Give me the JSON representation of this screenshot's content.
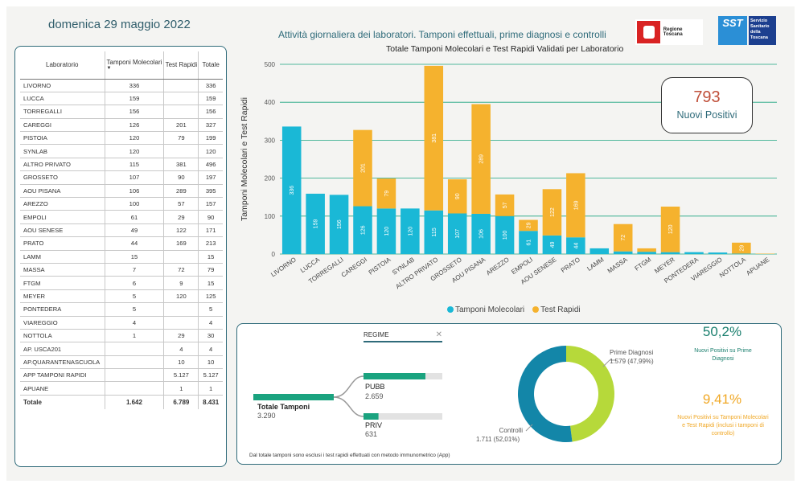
{
  "header": {
    "date": "domenica 29 maggio 2022",
    "subtitle": "Attività giornaliera dei laboratori. Tamponi effettuali, prime diagnosi e controlli",
    "logo_regione": "Regione Toscana",
    "logo_sst_mark": "SST",
    "logo_sst_text": "Servizio Sanitario della Toscana"
  },
  "table": {
    "headers": [
      "Laboratorio",
      "Tamponi Molecolari",
      "Test Rapidi",
      "Totale"
    ],
    "rows": [
      [
        "LIVORNO",
        "336",
        "",
        "336"
      ],
      [
        "LUCCA",
        "159",
        "",
        "159"
      ],
      [
        "TORREGALLI",
        "156",
        "",
        "156"
      ],
      [
        "CAREGGI",
        "126",
        "201",
        "327"
      ],
      [
        "PISTOIA",
        "120",
        "79",
        "199"
      ],
      [
        "SYNLAB",
        "120",
        "",
        "120"
      ],
      [
        "ALTRO PRIVATO",
        "115",
        "381",
        "496"
      ],
      [
        "GROSSETO",
        "107",
        "90",
        "197"
      ],
      [
        "AOU PISANA",
        "106",
        "289",
        "395"
      ],
      [
        "AREZZO",
        "100",
        "57",
        "157"
      ],
      [
        "EMPOLI",
        "61",
        "29",
        "90"
      ],
      [
        "AOU SENESE",
        "49",
        "122",
        "171"
      ],
      [
        "PRATO",
        "44",
        "169",
        "213"
      ],
      [
        "LAMM",
        "15",
        "",
        "15"
      ],
      [
        "MASSA",
        "7",
        "72",
        "79"
      ],
      [
        "FTGM",
        "6",
        "9",
        "15"
      ],
      [
        "MEYER",
        "5",
        "120",
        "125"
      ],
      [
        "PONTEDERA",
        "5",
        "",
        "5"
      ],
      [
        "VIAREGGIO",
        "4",
        "",
        "4"
      ],
      [
        "NOTTOLA",
        "1",
        "29",
        "30"
      ],
      [
        "AP. USCA201",
        "",
        "4",
        "4"
      ],
      [
        "AP.QUARANTENASCUOLA",
        "",
        "10",
        "10"
      ],
      [
        "APP TAMPONI RAPIDI",
        "",
        "5.127",
        "5.127"
      ],
      [
        "APUANE",
        "",
        "1",
        "1"
      ]
    ],
    "total": [
      "Totale",
      "1.642",
      "6.789",
      "8.431"
    ]
  },
  "chart_data": {
    "type": "bar",
    "stacked": true,
    "title": "Totale Tamponi Molecolari e Test Rapidi Validati per Laboratorio",
    "ylabel": "Tamponi Molecolari e Test Rapidi",
    "ylim": [
      0,
      500
    ],
    "yticks": [
      0,
      100,
      200,
      300,
      400,
      500
    ],
    "categories": [
      "LIVORNO",
      "LUCCA",
      "TORREGALLI",
      "CAREGGI",
      "PISTOIA",
      "SYNLAB",
      "ALTRO PRIVATO",
      "GROSSETO",
      "AOU PISANA",
      "AREZZO",
      "EMPOLI",
      "AOU SENESE",
      "PRATO",
      "LAMM",
      "MASSA",
      "FTGM",
      "MEYER",
      "PONTEDERA",
      "VIAREGGIO",
      "NOTTOLA",
      "APUANE"
    ],
    "series": [
      {
        "name": "Tamponi Molecolari",
        "color": "#1ab8d6",
        "values": [
          336,
          159,
          156,
          126,
          120,
          120,
          115,
          107,
          106,
          100,
          61,
          49,
          44,
          15,
          7,
          6,
          5,
          5,
          4,
          1,
          0
        ]
      },
      {
        "name": "Test Rapidi",
        "color": "#f5b22e",
        "values": [
          0,
          0,
          0,
          201,
          79,
          0,
          381,
          90,
          289,
          57,
          29,
          122,
          169,
          0,
          72,
          9,
          120,
          0,
          0,
          29,
          1
        ]
      }
    ],
    "legend_position": "bottom",
    "grid": true
  },
  "positivi": {
    "value": "793",
    "label": "Nuovi Positivi"
  },
  "regime": {
    "filter_label": "REGIME",
    "total_label": "Totale Tamponi",
    "total_value": "3.290",
    "pubb_label": "PUBB",
    "pubb_value": "2.659",
    "pubb_fraction": 0.81,
    "priv_label": "PRIV",
    "priv_value": "631",
    "priv_fraction": 0.19
  },
  "donut": {
    "prime_label": "Prime Diagnosi",
    "prime_value": "1.579 (47,99%)",
    "prime_fraction": 0.4799,
    "prime_color": "#b6d93a",
    "controlli_label": "Controlli",
    "controlli_value": "1.711 (52,01%)",
    "controlli_color": "#1386a8"
  },
  "kpi": {
    "k1_value": "50,2%",
    "k1_label": "Nuovi Positivi su Prime Diagnosi",
    "k2_value": "9,41%",
    "k2_label": "Nuovi Positivi su Tamponi Molecolari e Test Rapidi (inclusi i tamponi di controllo)"
  },
  "note": "Dal totale tamponi sono esclusi i test rapidi effettuati con metodo immunometrico (App)"
}
